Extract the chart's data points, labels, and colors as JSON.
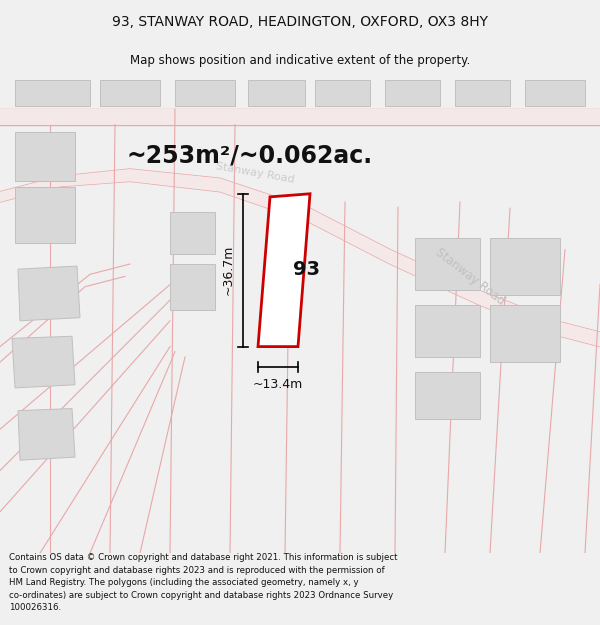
{
  "title": "93, STANWAY ROAD, HEADINGTON, OXFORD, OX3 8HY",
  "subtitle": "Map shows position and indicative extent of the property.",
  "area_label": "~253m²/~0.062ac.",
  "property_number": "93",
  "width_label": "~13.4m",
  "height_label": "~36.7m",
  "footer": "Contains OS data © Crown copyright and database right 2021. This information is subject to Crown copyright and database rights 2023 and is reproduced with the permission of HM Land Registry. The polygons (including the associated geometry, namely x, y co-ordinates) are subject to Crown copyright and database rights 2023 Ordnance Survey 100026316.",
  "bg_color": "#f0f0f0",
  "map_bg": "#ffffff",
  "building_fill": "#d8d8d8",
  "building_edge": "#c0c0c0",
  "road_line_color": "#e8a8a8",
  "property_outline": "#cc0000",
  "property_fill": "#ffffff",
  "road_label_color": "#bbbbbb",
  "title_fontsize": 10,
  "subtitle_fontsize": 8.5,
  "area_fontsize": 17,
  "property_num_fontsize": 14,
  "dim_fontsize": 9,
  "footer_fontsize": 6.2
}
